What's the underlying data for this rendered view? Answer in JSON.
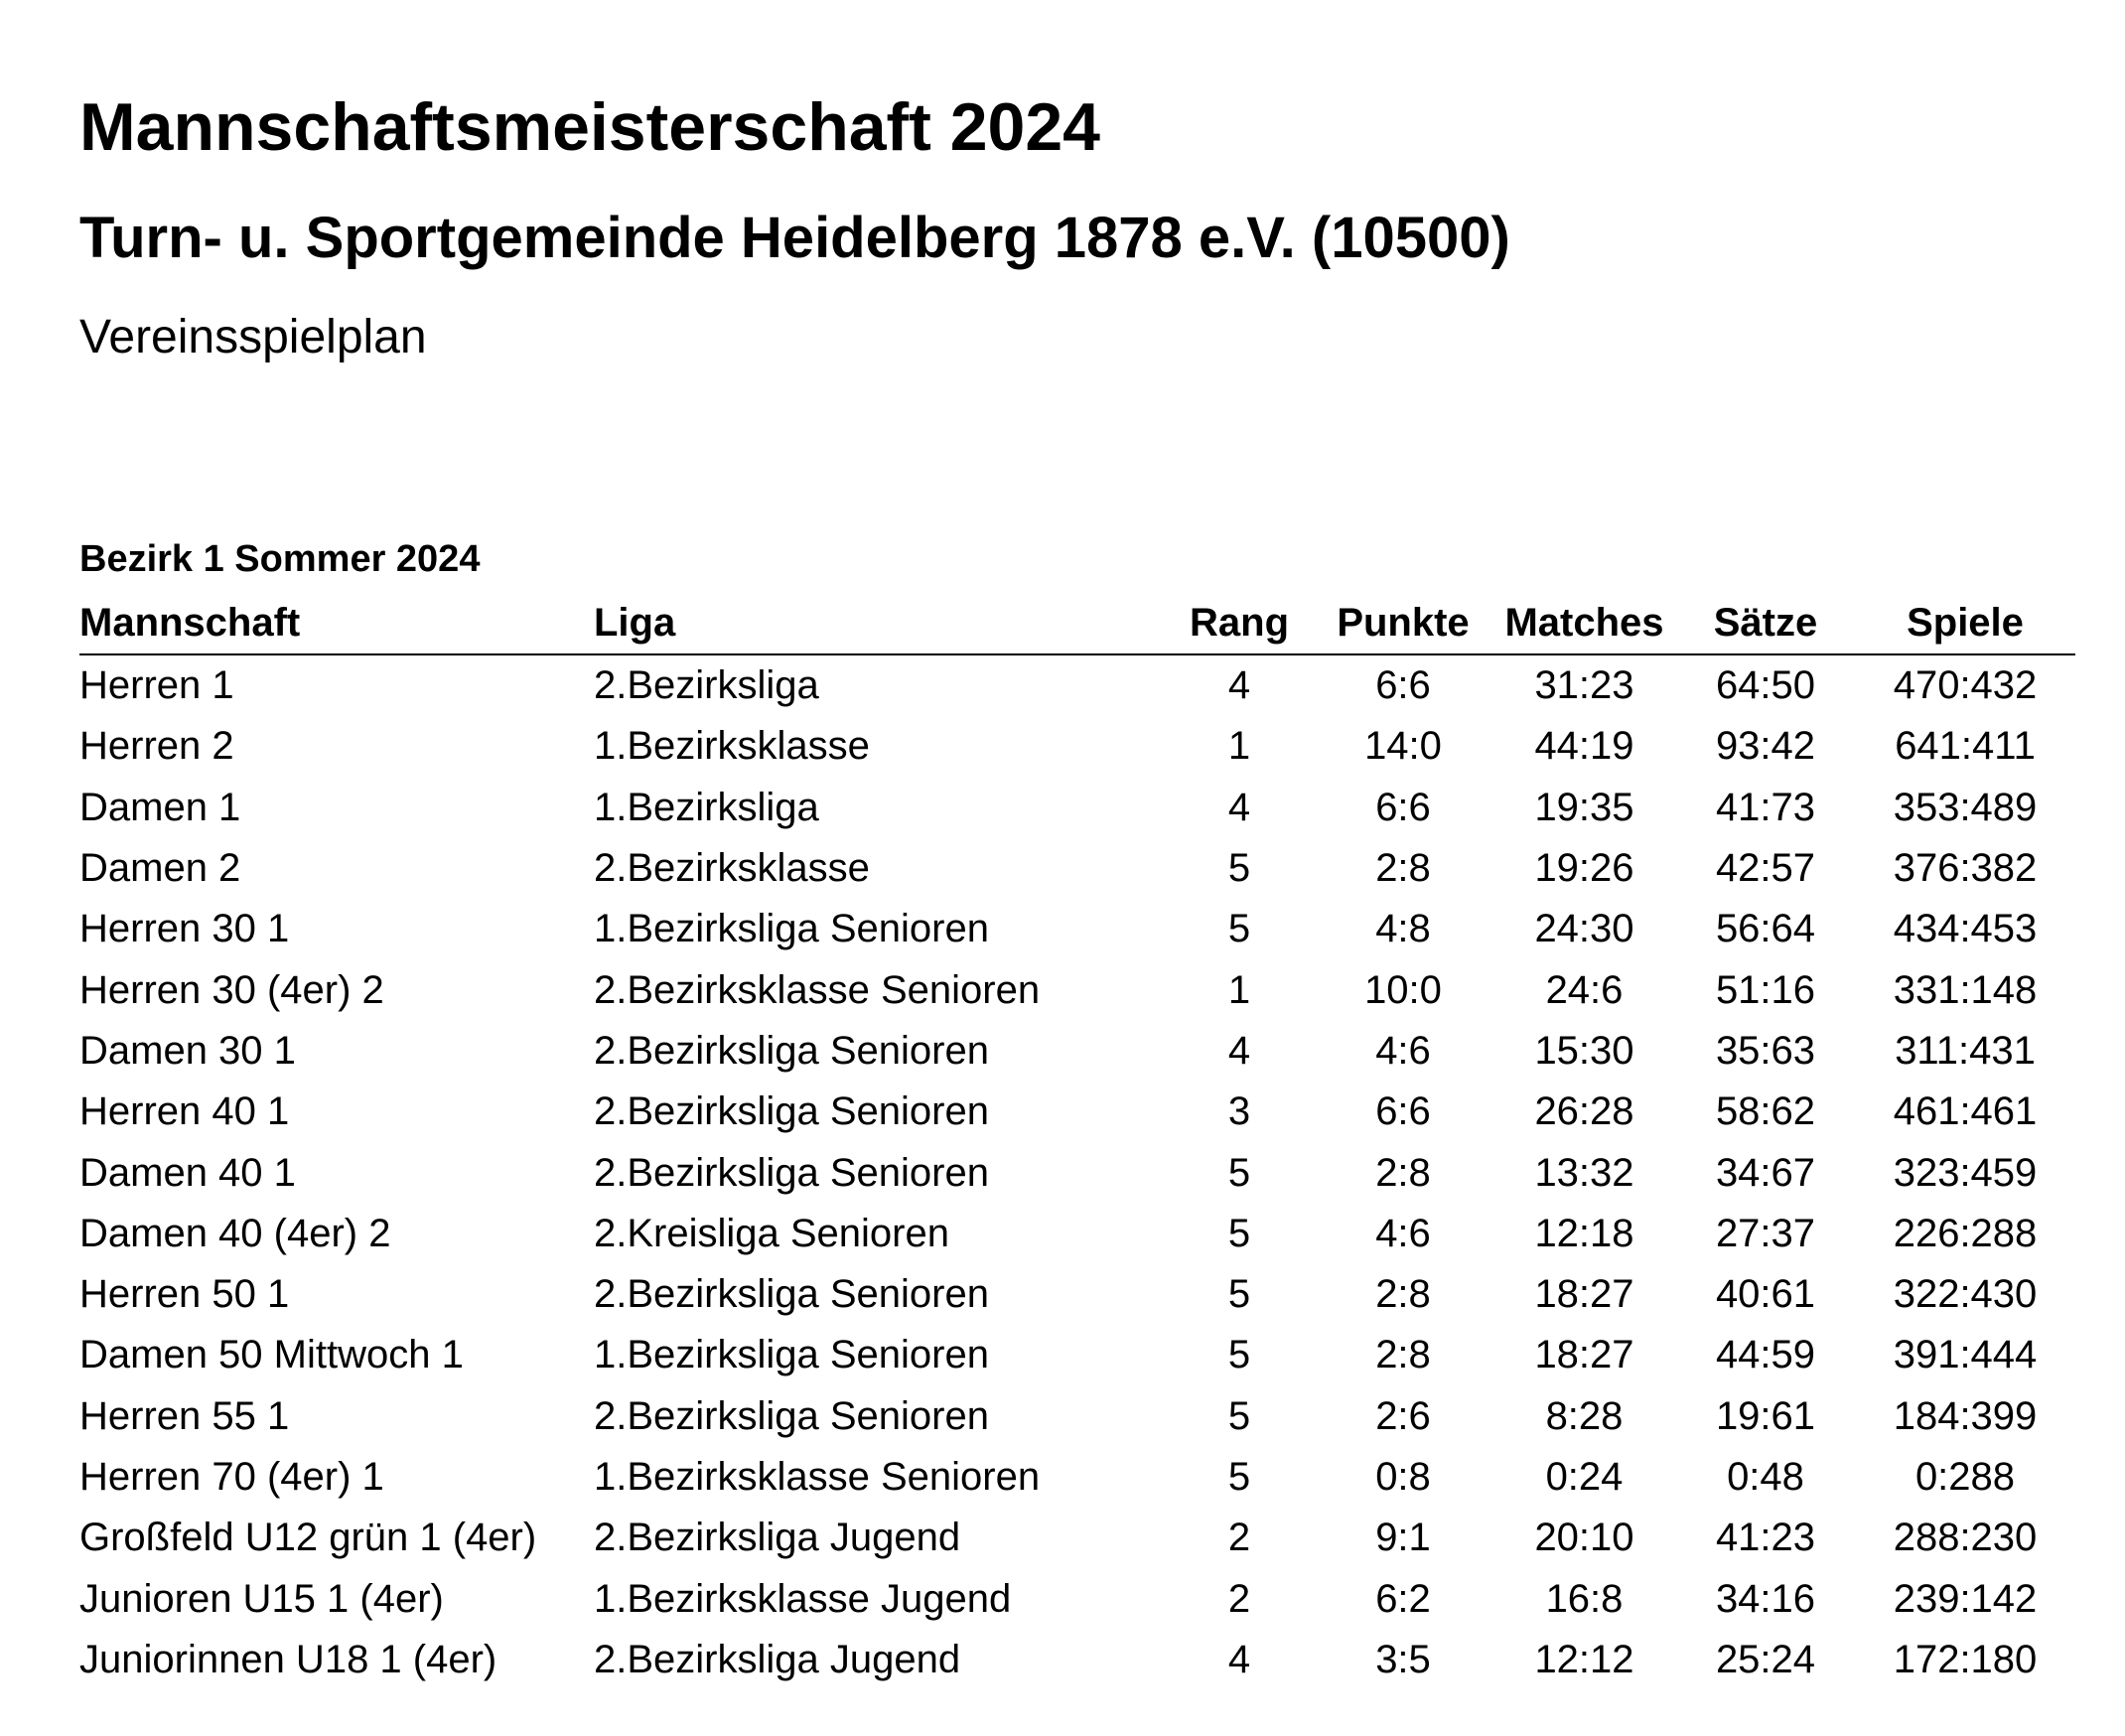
{
  "header": {
    "title": "Mannschaftsmeisterschaft 2024",
    "club": "Turn- u. Sportgemeinde Heidelberg 1878 e.V. (10500)",
    "document_type": "Vereinsspielplan"
  },
  "section": {
    "title": "Bezirk 1 Sommer 2024",
    "columns": {
      "team": "Mannschaft",
      "league": "Liga",
      "rank": "Rang",
      "points": "Punkte",
      "matches": "Matches",
      "sets": "Sätze",
      "games": "Spiele"
    },
    "rows": [
      {
        "team": "Herren 1",
        "league": "2.Bezirksliga",
        "rank": "4",
        "points": "6:6",
        "matches": "31:23",
        "sets": "64:50",
        "games": "470:432"
      },
      {
        "team": "Herren 2",
        "league": "1.Bezirksklasse",
        "rank": "1",
        "points": "14:0",
        "matches": "44:19",
        "sets": "93:42",
        "games": "641:411"
      },
      {
        "team": "Damen 1",
        "league": "1.Bezirksliga",
        "rank": "4",
        "points": "6:6",
        "matches": "19:35",
        "sets": "41:73",
        "games": "353:489"
      },
      {
        "team": "Damen 2",
        "league": "2.Bezirksklasse",
        "rank": "5",
        "points": "2:8",
        "matches": "19:26",
        "sets": "42:57",
        "games": "376:382"
      },
      {
        "team": "Herren 30 1",
        "league": "1.Bezirksliga Senioren",
        "rank": "5",
        "points": "4:8",
        "matches": "24:30",
        "sets": "56:64",
        "games": "434:453"
      },
      {
        "team": "Herren 30 (4er) 2",
        "league": "2.Bezirksklasse Senioren",
        "rank": "1",
        "points": "10:0",
        "matches": "24:6",
        "sets": "51:16",
        "games": "331:148"
      },
      {
        "team": "Damen 30 1",
        "league": "2.Bezirksliga Senioren",
        "rank": "4",
        "points": "4:6",
        "matches": "15:30",
        "sets": "35:63",
        "games": "311:431"
      },
      {
        "team": "Herren 40 1",
        "league": "2.Bezirksliga Senioren",
        "rank": "3",
        "points": "6:6",
        "matches": "26:28",
        "sets": "58:62",
        "games": "461:461"
      },
      {
        "team": "Damen 40 1",
        "league": "2.Bezirksliga Senioren",
        "rank": "5",
        "points": "2:8",
        "matches": "13:32",
        "sets": "34:67",
        "games": "323:459"
      },
      {
        "team": "Damen 40 (4er) 2",
        "league": "2.Kreisliga Senioren",
        "rank": "5",
        "points": "4:6",
        "matches": "12:18",
        "sets": "27:37",
        "games": "226:288"
      },
      {
        "team": "Herren 50 1",
        "league": "2.Bezirksliga Senioren",
        "rank": "5",
        "points": "2:8",
        "matches": "18:27",
        "sets": "40:61",
        "games": "322:430"
      },
      {
        "team": "Damen 50 Mittwoch 1",
        "league": "1.Bezirksliga Senioren",
        "rank": "5",
        "points": "2:8",
        "matches": "18:27",
        "sets": "44:59",
        "games": "391:444"
      },
      {
        "team": "Herren 55 1",
        "league": "2.Bezirksliga Senioren",
        "rank": "5",
        "points": "2:6",
        "matches": "8:28",
        "sets": "19:61",
        "games": "184:399"
      },
      {
        "team": "Herren 70 (4er) 1",
        "league": "1.Bezirksklasse Senioren",
        "rank": "5",
        "points": "0:8",
        "matches": "0:24",
        "sets": "0:48",
        "games": "0:288"
      },
      {
        "team": "Großfeld U12 grün 1 (4er)",
        "league": "2.Bezirksliga Jugend",
        "rank": "2",
        "points": "9:1",
        "matches": "20:10",
        "sets": "41:23",
        "games": "288:230"
      },
      {
        "team": "Junioren U15 1 (4er)",
        "league": "1.Bezirksklasse Jugend",
        "rank": "2",
        "points": "6:2",
        "matches": "16:8",
        "sets": "34:16",
        "games": "239:142"
      },
      {
        "team": "Juniorinnen U18 1 (4er)",
        "league": "2.Bezirksliga Jugend",
        "rank": "4",
        "points": "3:5",
        "matches": "12:12",
        "sets": "25:24",
        "games": "172:180"
      }
    ]
  }
}
